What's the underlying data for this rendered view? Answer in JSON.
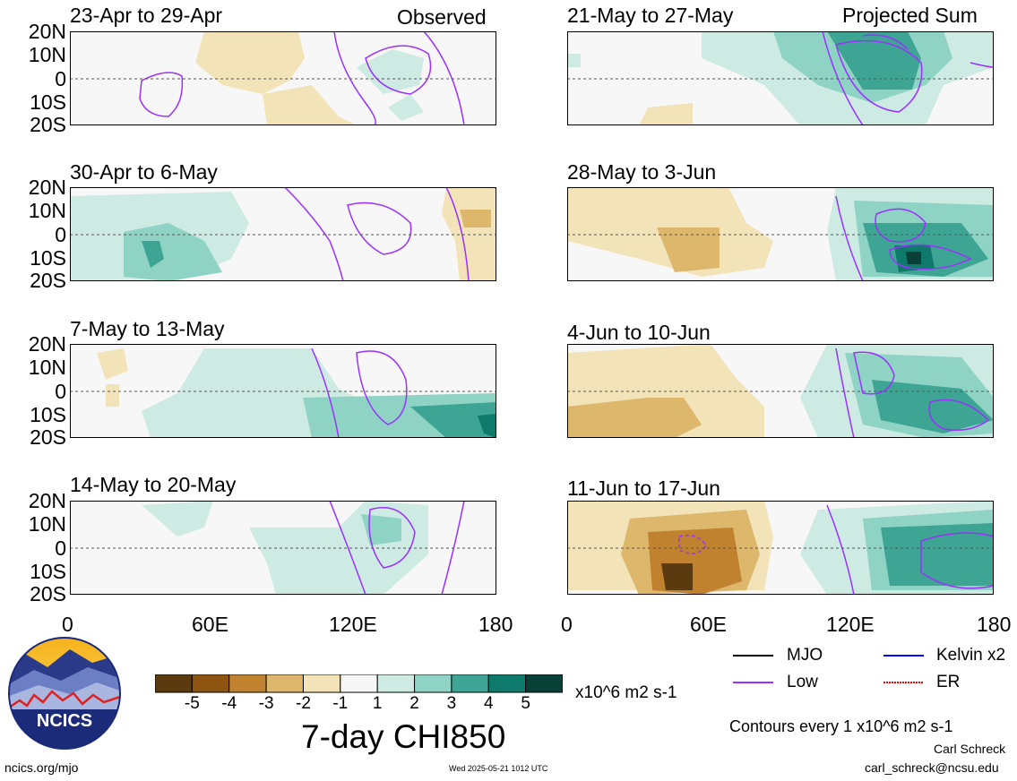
{
  "header": {
    "left_label": "Observed",
    "right_label": "Projected Sum"
  },
  "panels": {
    "left": [
      {
        "title": "23-Apr to 29-Apr"
      },
      {
        "title": "30-Apr to 6-May"
      },
      {
        "title": "7-May to 13-May"
      },
      {
        "title": "14-May to 20-May"
      }
    ],
    "right": [
      {
        "title": "21-May to 27-May"
      },
      {
        "title": "28-May to 3-Jun"
      },
      {
        "title": "4-Jun to 10-Jun"
      },
      {
        "title": "11-Jun to 17-Jun"
      }
    ]
  },
  "axes": {
    "lat_labels": [
      "20N",
      "10N",
      "0",
      "10S",
      "20S"
    ],
    "lon_labels": [
      "0",
      "60E",
      "120E",
      "180"
    ]
  },
  "colorbar": {
    "ticks": [
      "-5",
      "-4",
      "-3",
      "-2",
      "-1",
      "1",
      "2",
      "3",
      "4",
      "5"
    ],
    "colors": [
      "#5a3a0e",
      "#8e5412",
      "#c0822e",
      "#dcb76c",
      "#f3e3b8",
      "#f7f7f7",
      "#cdeae3",
      "#8ed3c3",
      "#3ea595",
      "#0d7a6c",
      "#083f36"
    ],
    "units": "x10^6 m2 s-1",
    "title": "7-day CHI850"
  },
  "legend": {
    "items": [
      {
        "label": "MJO",
        "color": "#000000"
      },
      {
        "label": "Kelvin x2",
        "color": "#0000ff"
      },
      {
        "label": "Low",
        "color": "#9b30ff"
      },
      {
        "label": "ER",
        "color": "#ff0000"
      }
    ],
    "contour_note": "Contours every 1 x10^6 m2 s-1"
  },
  "footer": {
    "logo_text": "NCICS",
    "url": "ncics.org/mjo",
    "timestamp": "Wed 2025-05-21 1012 UTC",
    "author": "Carl Schreck",
    "email": "carl_schreck@ncsu.edu"
  }
}
